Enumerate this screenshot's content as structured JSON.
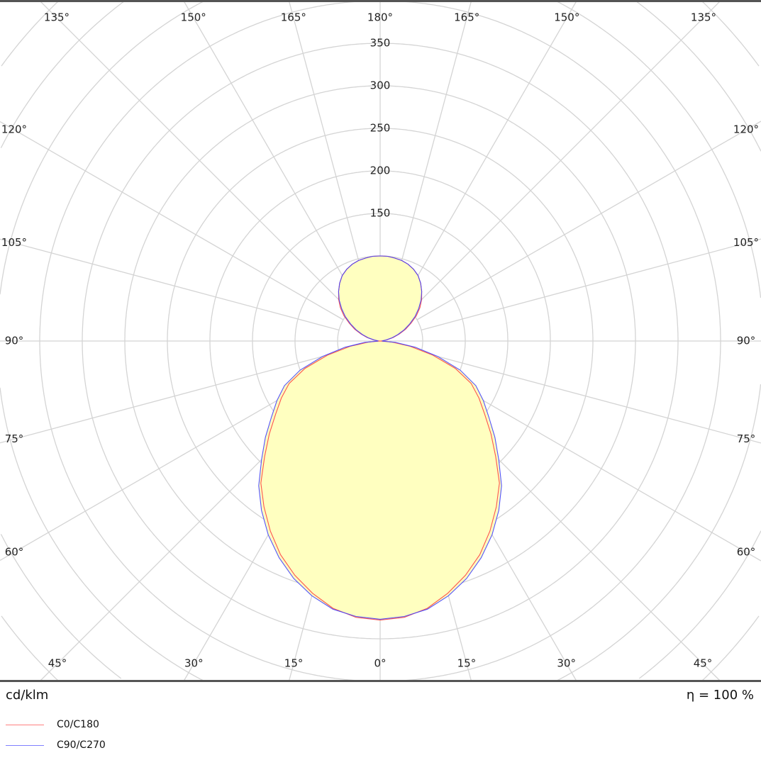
{
  "chart_data": {
    "type": "polar",
    "unit_label": "cd/klm",
    "efficiency_label": "η = 100 %",
    "radial_ticks": [
      150,
      200,
      250,
      300,
      350
    ],
    "ring_step": 50,
    "angle_labels": {
      "top": [
        "135°",
        "150°",
        "165°",
        "180°",
        "165°",
        "150°",
        "135°"
      ],
      "left": [
        "120°",
        "105°",
        "90°",
        "75°",
        "60°"
      ],
      "right": [
        "120°",
        "105°",
        "90°",
        "75°",
        "60°"
      ],
      "bottom": [
        "45°",
        "30°",
        "15°",
        "0°",
        "15°",
        "30°",
        "45°"
      ]
    },
    "gamma": [
      0,
      5,
      10,
      15,
      20,
      25,
      30,
      35,
      40,
      45,
      50,
      55,
      60,
      65,
      70,
      75,
      80,
      85,
      90,
      95,
      100,
      105,
      110,
      115,
      120,
      125,
      130,
      135,
      140,
      145,
      150,
      155,
      160,
      165,
      170,
      175,
      180
    ],
    "series": [
      {
        "name": "C0/C180",
        "color": "#ff4040",
        "values": [
          328,
          326,
          319,
          307,
          293,
          277,
          258,
          238,
          218,
          192,
          170,
          150,
          134,
          118,
          94,
          64,
          36,
          14,
          0,
          3,
          8,
          16,
          24,
          33,
          42,
          52,
          61,
          69,
          76,
          83,
          89,
          93,
          96,
          98,
          99,
          100,
          100
        ]
      },
      {
        "name": "C90/C270",
        "color": "#4040ff",
        "values": [
          327,
          325,
          320,
          310,
          297,
          281,
          263,
          243,
          222,
          197,
          176,
          156,
          140,
          124,
          100,
          70,
          42,
          18,
          2,
          3,
          7,
          14,
          22,
          31,
          40,
          50,
          59,
          68,
          76,
          83,
          89,
          93,
          96,
          98,
          99,
          100,
          100
        ]
      }
    ],
    "fill_color": "#ffffc0",
    "grid_color": "#d4d4d4"
  },
  "legend": [
    {
      "label": "C0/C180",
      "color": "#ff8080"
    },
    {
      "label": "C90/C270",
      "color": "#8080ff"
    }
  ]
}
